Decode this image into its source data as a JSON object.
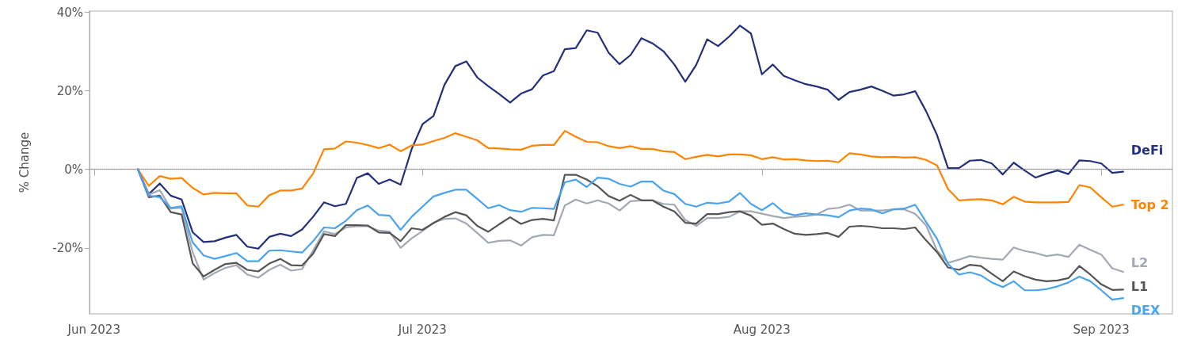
{
  "chart_data": {
    "type": "line",
    "ylabel": "% Change",
    "legend": false,
    "grid": false,
    "marker": "none",
    "line_style": "solid",
    "xlim": [
      "2023-05-31T14:00",
      "2023-09-07T12:00"
    ],
    "xticks": [
      {
        "value": "2023-06-01",
        "label": "Jun 2023"
      },
      {
        "value": "2023-07-01",
        "label": "Jul 2023"
      },
      {
        "value": "2023-08-01",
        "label": "Aug 2023"
      },
      {
        "value": "2023-09-01",
        "label": "Sep 2023"
      }
    ],
    "ylim": [
      -36.8,
      40.3
    ],
    "yticks": [
      {
        "value": -20,
        "label": "-20%"
      },
      {
        "value": 0,
        "label": "0%"
      },
      {
        "value": 20,
        "label": "20%"
      },
      {
        "value": 40,
        "label": "40%"
      }
    ],
    "ref_lines": [
      {
        "axis": "y",
        "value": 0,
        "color": "#999999",
        "line_style": "dotted"
      }
    ],
    "x": [
      "2023-06-05",
      "2023-06-06",
      "2023-06-07",
      "2023-06-08",
      "2023-06-09",
      "2023-06-10",
      "2023-06-11",
      "2023-06-12",
      "2023-06-13",
      "2023-06-14",
      "2023-06-15",
      "2023-06-16",
      "2023-06-17",
      "2023-06-18",
      "2023-06-19",
      "2023-06-20",
      "2023-06-21",
      "2023-06-22",
      "2023-06-23",
      "2023-06-24",
      "2023-06-25",
      "2023-06-26",
      "2023-06-27",
      "2023-06-28",
      "2023-06-29",
      "2023-06-30",
      "2023-07-01",
      "2023-07-02",
      "2023-07-03",
      "2023-07-04",
      "2023-07-05",
      "2023-07-06",
      "2023-07-07",
      "2023-07-08",
      "2023-07-09",
      "2023-07-10",
      "2023-07-11",
      "2023-07-12",
      "2023-07-13",
      "2023-07-14",
      "2023-07-15",
      "2023-07-16",
      "2023-07-17",
      "2023-07-18",
      "2023-07-19",
      "2023-07-20",
      "2023-07-21",
      "2023-07-22",
      "2023-07-23",
      "2023-07-24",
      "2023-07-25",
      "2023-07-26",
      "2023-07-27",
      "2023-07-28",
      "2023-07-29",
      "2023-07-30",
      "2023-07-31",
      "2023-08-01",
      "2023-08-02",
      "2023-08-03",
      "2023-08-04",
      "2023-08-05",
      "2023-08-06",
      "2023-08-07",
      "2023-08-08",
      "2023-08-09",
      "2023-08-10",
      "2023-08-11",
      "2023-08-12",
      "2023-08-13",
      "2023-08-14",
      "2023-08-15",
      "2023-08-16",
      "2023-08-17",
      "2023-08-18",
      "2023-08-19",
      "2023-08-20",
      "2023-08-21",
      "2023-08-22",
      "2023-08-23",
      "2023-08-24",
      "2023-08-25",
      "2023-08-26",
      "2023-08-27",
      "2023-08-28",
      "2023-08-29",
      "2023-08-30",
      "2023-08-31",
      "2023-09-01",
      "2023-09-02",
      "2023-09-03"
    ],
    "series": [
      {
        "name": "DeFi",
        "color": "#22307c",
        "values": [
          0,
          -6.3,
          -3.6,
          -6.7,
          -7.7,
          -16.0,
          -18.5,
          -18.3,
          -17.4,
          -16.7,
          -19.7,
          -20.2,
          -17.2,
          -16.4,
          -17.0,
          -15.3,
          -12.1,
          -8.4,
          -9.4,
          -8.8,
          -2.2,
          -1.0,
          -3.7,
          -2.6,
          -3.9,
          5.1,
          11.5,
          13.6,
          21.5,
          26.3,
          27.5,
          23.4,
          21.2,
          19.2,
          17.0,
          19.3,
          20.4,
          23.9,
          25.0,
          30.6,
          30.9,
          35.4,
          34.8,
          29.7,
          26.8,
          29.1,
          33.4,
          32.1,
          30.1,
          26.7,
          22.3,
          26.6,
          33.1,
          31.4,
          33.8,
          36.6,
          34.6,
          24.2,
          26.7,
          23.8,
          22.7,
          21.7,
          21.1,
          20.3,
          17.7,
          19.7,
          20.3,
          21.1,
          20.0,
          18.8,
          19.1,
          19.9,
          14.8,
          8.7,
          0.3,
          0.3,
          2.2,
          2.4,
          1.5,
          -1.3,
          1.7,
          -0.3,
          -2.1,
          -1.1,
          -0.3,
          -1.2,
          2.3,
          2.1,
          1.5,
          -0.9,
          -0.6
        ]
      },
      {
        "name": "Top 2",
        "color": "#ff8400",
        "values": [
          0,
          -4.2,
          -1.7,
          -2.4,
          -2.2,
          -4.7,
          -6.4,
          -6.0,
          -6.1,
          -6.1,
          -9.2,
          -9.5,
          -6.6,
          -5.4,
          -5.4,
          -4.9,
          -1.1,
          5.1,
          5.3,
          7.1,
          6.8,
          6.2,
          5.4,
          6.3,
          4.6,
          6.1,
          6.3,
          7.2,
          8.0,
          9.2,
          8.3,
          7.4,
          5.4,
          5.3,
          5.1,
          5.0,
          6.0,
          6.2,
          6.2,
          9.8,
          8.3,
          7.0,
          6.9,
          5.9,
          5.4,
          5.9,
          5.2,
          5.2,
          4.6,
          4.4,
          2.6,
          3.2,
          3.7,
          3.3,
          3.8,
          3.8,
          3.6,
          2.6,
          3.1,
          2.5,
          2.6,
          2.3,
          2.1,
          2.2,
          1.8,
          4.1,
          3.8,
          3.3,
          3.1,
          3.2,
          3.0,
          3.1,
          2.4,
          1.0,
          -5.0,
          -7.9,
          -7.7,
          -7.6,
          -7.9,
          -8.9,
          -7.0,
          -8.2,
          -8.4,
          -8.4,
          -8.4,
          -8.3,
          -4.0,
          -4.6,
          -7.1,
          -9.5,
          -9.0
        ]
      },
      {
        "name": "L2",
        "color": "#a2a9b5",
        "values": [
          0,
          -6.4,
          -5.3,
          -10.0,
          -9.8,
          -21.1,
          -28.1,
          -26.4,
          -25.1,
          -24.4,
          -26.8,
          -27.6,
          -25.6,
          -24.3,
          -25.8,
          -25.4,
          -20.7,
          -15.8,
          -16.5,
          -14.8,
          -14.5,
          -14.5,
          -15.6,
          -15.9,
          -20.0,
          -17.6,
          -15.7,
          -13.6,
          -12.6,
          -12.5,
          -13.8,
          -16.2,
          -18.7,
          -18.2,
          -18.1,
          -19.4,
          -17.3,
          -16.7,
          -16.8,
          -9.2,
          -7.7,
          -8.7,
          -7.9,
          -8.7,
          -10.5,
          -8.1,
          -7.9,
          -7.9,
          -8.8,
          -9.0,
          -12.9,
          -14.4,
          -12.4,
          -12.4,
          -12.1,
          -10.7,
          -10.7,
          -11.3,
          -11.9,
          -12.4,
          -12.1,
          -11.9,
          -11.5,
          -10.1,
          -9.8,
          -9.0,
          -10.5,
          -10.5,
          -10.5,
          -10.2,
          -10.2,
          -11.3,
          -14.3,
          -20.7,
          -23.8,
          -23.0,
          -22.1,
          -22.5,
          -22.8,
          -23.0,
          -19.9,
          -20.8,
          -21.3,
          -22.1,
          -21.7,
          -22.3,
          -19.2,
          -20.5,
          -21.7,
          -25.2,
          -26.1
        ]
      },
      {
        "name": "L1",
        "color": "#555555",
        "values": [
          0,
          -7.1,
          -6.7,
          -10.9,
          -11.5,
          -23.9,
          -27.3,
          -25.6,
          -24.1,
          -23.8,
          -25.6,
          -26.0,
          -24.0,
          -22.8,
          -24.4,
          -24.5,
          -21.5,
          -16.5,
          -17.0,
          -14.2,
          -14.2,
          -14.3,
          -16.1,
          -16.2,
          -18.3,
          -15.0,
          -15.4,
          -13.7,
          -12.1,
          -10.9,
          -11.7,
          -14.4,
          -15.9,
          -14.0,
          -12.2,
          -13.9,
          -12.9,
          -12.6,
          -13.0,
          -1.4,
          -1.4,
          -2.6,
          -4.3,
          -6.8,
          -8.0,
          -6.5,
          -7.9,
          -7.9,
          -9.5,
          -10.7,
          -13.6,
          -13.8,
          -11.4,
          -11.4,
          -10.9,
          -10.7,
          -11.8,
          -14.1,
          -13.8,
          -15.2,
          -16.4,
          -16.7,
          -16.5,
          -16.2,
          -17.2,
          -14.6,
          -14.4,
          -14.6,
          -15.0,
          -15.0,
          -15.2,
          -14.8,
          -18.1,
          -21.1,
          -25.0,
          -25.6,
          -24.3,
          -24.6,
          -26.6,
          -28.5,
          -26.0,
          -27.2,
          -28.1,
          -28.5,
          -28.3,
          -27.7,
          -24.6,
          -26.8,
          -29.3,
          -30.7,
          -30.6
        ]
      },
      {
        "name": "DEX",
        "color": "#4aa3ee",
        "values": [
          0,
          -6.7,
          -7.1,
          -9.8,
          -9.4,
          -18.6,
          -21.9,
          -22.8,
          -22.1,
          -21.3,
          -23.4,
          -23.4,
          -20.7,
          -20.6,
          -20.9,
          -21.2,
          -18.3,
          -14.8,
          -15.0,
          -13.1,
          -10.4,
          -9.2,
          -11.6,
          -11.8,
          -15.4,
          -12.1,
          -9.5,
          -6.9,
          -6.0,
          -5.2,
          -5.2,
          -7.5,
          -9.9,
          -9.1,
          -10.4,
          -10.8,
          -9.8,
          -9.9,
          -10.1,
          -3.3,
          -2.6,
          -4.5,
          -2.1,
          -2.4,
          -3.7,
          -4.4,
          -3.1,
          -3.1,
          -5.4,
          -6.3,
          -8.8,
          -9.5,
          -8.5,
          -8.7,
          -8.2,
          -6.0,
          -8.8,
          -10.4,
          -8.6,
          -11.0,
          -11.7,
          -11.2,
          -11.5,
          -11.7,
          -12.2,
          -10.5,
          -10.0,
          -10.2,
          -11.2,
          -10.2,
          -10.0,
          -9.0,
          -13.4,
          -17.7,
          -24.1,
          -26.8,
          -26.2,
          -27.0,
          -28.8,
          -30.0,
          -28.5,
          -30.8,
          -30.8,
          -30.5,
          -29.8,
          -28.8,
          -27.3,
          -28.5,
          -30.8,
          -33.2,
          -32.8
        ]
      }
    ]
  }
}
